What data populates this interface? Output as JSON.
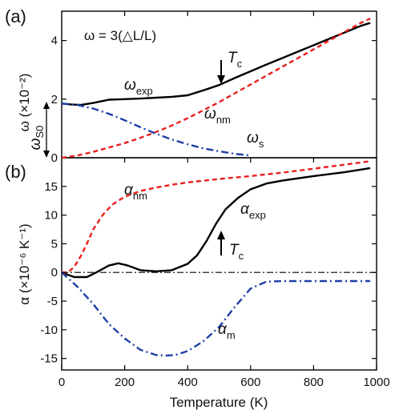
{
  "chart_data": [
    {
      "panel": "(a)",
      "type": "line",
      "ylabel": "ω (×10⁻²)",
      "ylim": [
        0,
        5
      ],
      "xlim": [
        0,
        1000
      ],
      "yticks": [
        {
          "value": 0,
          "label": "0"
        },
        {
          "value": 2,
          "label": "2"
        },
        {
          "value": 4,
          "label": "4"
        }
      ],
      "formula": "ω = 3(△L/L)",
      "annotations": {
        "tc": {
          "text": "T",
          "sub": "c",
          "x": 510
        },
        "ws0": {
          "text": "ω",
          "sub": "S0",
          "from": 0,
          "to": 1.85
        },
        "exp": {
          "text": "ω",
          "sub": "exp"
        },
        "nm": {
          "text": "ω",
          "sub": "nm"
        },
        "s": {
          "text": "ω",
          "sub": "s"
        }
      },
      "series": [
        {
          "label": "ω exp",
          "color": "#000000",
          "style": "solid",
          "x": [
            0,
            30,
            60,
            100,
            150,
            200,
            250,
            300,
            350,
            400,
            450,
            500,
            550,
            600,
            650,
            700,
            750,
            800,
            850,
            900,
            950,
            980
          ],
          "y": [
            1.85,
            1.82,
            1.8,
            1.87,
            1.98,
            2.0,
            2.02,
            2.05,
            2.08,
            2.13,
            2.3,
            2.48,
            2.72,
            2.95,
            3.18,
            3.4,
            3.62,
            3.84,
            4.06,
            4.28,
            4.5,
            4.6
          ]
        },
        {
          "label": "ω nm",
          "color": "#e8201c",
          "style": "dashed",
          "x": [
            0,
            50,
            100,
            150,
            200,
            250,
            300,
            350,
            400,
            450,
            500,
            550,
            600,
            650,
            700,
            750,
            800,
            850,
            900,
            950,
            980
          ],
          "y": [
            0,
            0.08,
            0.2,
            0.35,
            0.5,
            0.68,
            0.88,
            1.1,
            1.35,
            1.62,
            1.9,
            2.2,
            2.5,
            2.8,
            3.1,
            3.4,
            3.7,
            4.0,
            4.3,
            4.6,
            4.75
          ]
        },
        {
          "label": "ω s",
          "color": "#1f3fa8",
          "style": "dashdot",
          "x": [
            0,
            50,
            100,
            150,
            200,
            250,
            300,
            350,
            400,
            450,
            500,
            550,
            600
          ],
          "y": [
            1.85,
            1.8,
            1.68,
            1.5,
            1.28,
            1.04,
            0.82,
            0.62,
            0.46,
            0.32,
            0.22,
            0.13,
            0.08
          ]
        }
      ]
    },
    {
      "panel": "(b)",
      "type": "line",
      "ylabel": "α (×10⁻⁶ K⁻¹)",
      "xlabel": "Temperature (K)",
      "ylim": [
        -17,
        20
      ],
      "xlim": [
        0,
        1000
      ],
      "yticks": [
        {
          "value": -15,
          "label": "-15"
        },
        {
          "value": -10,
          "label": "-10"
        },
        {
          "value": -5,
          "label": "-5"
        },
        {
          "value": 0,
          "label": "0"
        },
        {
          "value": 5,
          "label": "5"
        },
        {
          "value": 10,
          "label": "10"
        },
        {
          "value": 15,
          "label": "15"
        }
      ],
      "xticks": [
        {
          "value": 0,
          "label": "0"
        },
        {
          "value": 200,
          "label": "200"
        },
        {
          "value": 400,
          "label": "400"
        },
        {
          "value": 600,
          "label": "600"
        },
        {
          "value": 800,
          "label": "800"
        },
        {
          "value": 1000,
          "label": "1000"
        }
      ],
      "annotations": {
        "tc": {
          "text": "T",
          "sub": "c",
          "x": 510
        },
        "nm": {
          "text": "α",
          "sub": "nm"
        },
        "exp": {
          "text": "α",
          "sub": "exp"
        },
        "m": {
          "text": "α",
          "sub": "m"
        }
      },
      "series": [
        {
          "label": "α exp",
          "color": "#000000",
          "style": "solid",
          "x": [
            0,
            40,
            80,
            110,
            150,
            180,
            210,
            250,
            300,
            350,
            400,
            430,
            460,
            490,
            520,
            560,
            600,
            650,
            700,
            800,
            900,
            980
          ],
          "y": [
            0,
            -0.8,
            -0.8,
            0,
            1.2,
            1.6,
            1.2,
            0.4,
            0.2,
            0.4,
            1.5,
            3.0,
            5.5,
            8.5,
            11.0,
            13.0,
            14.5,
            15.5,
            16.0,
            16.8,
            17.5,
            18.2
          ]
        },
        {
          "label": "α nm",
          "color": "#e8201c",
          "style": "dashed",
          "x": [
            0,
            20,
            40,
            60,
            80,
            100,
            130,
            160,
            200,
            250,
            300,
            350,
            400,
            500,
            600,
            700,
            800,
            900,
            980
          ],
          "y": [
            0,
            0,
            1.0,
            2.8,
            5.0,
            7.5,
            10.0,
            11.8,
            13.2,
            14.2,
            14.8,
            15.3,
            15.7,
            16.3,
            16.8,
            17.4,
            18.1,
            18.8,
            19.4
          ]
        },
        {
          "label": "α m",
          "color": "#1f3fa8",
          "style": "dashdot",
          "x": [
            0,
            50,
            100,
            150,
            200,
            250,
            300,
            330,
            360,
            400,
            450,
            500,
            550,
            600,
            650,
            700,
            800,
            900,
            980
          ],
          "y": [
            0,
            -2.5,
            -5.5,
            -9.0,
            -11.5,
            -13.5,
            -14.4,
            -14.5,
            -14.4,
            -13.7,
            -12.0,
            -9.5,
            -6.0,
            -2.8,
            -1.6,
            -1.5,
            -1.5,
            -1.5,
            -1.5
          ]
        },
        {
          "label": "zero line",
          "color": "#000000",
          "style": "dashdot-thin",
          "x": [
            0,
            1000
          ],
          "y": [
            0,
            0
          ]
        }
      ]
    }
  ]
}
